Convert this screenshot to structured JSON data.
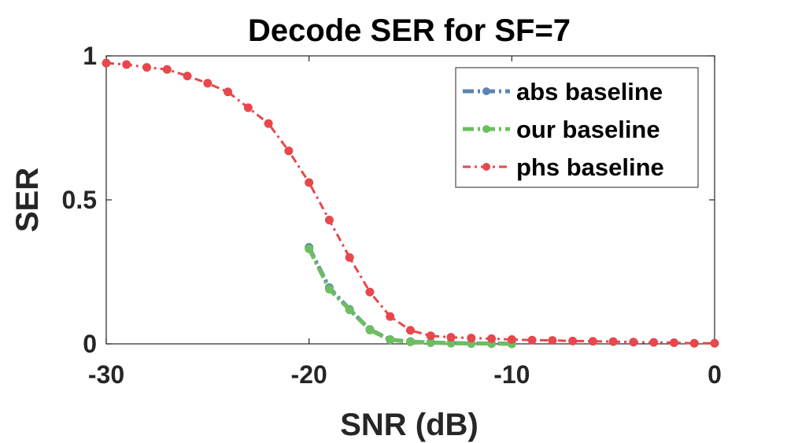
{
  "chart_data": {
    "type": "line",
    "title": "Decode SER for SF=7",
    "xlabel": "SNR (dB)",
    "ylabel": "SER",
    "xlim": [
      -30,
      0
    ],
    "ylim": [
      0,
      1
    ],
    "xticks": [
      -30,
      -20,
      -10,
      0
    ],
    "xtick_labels": [
      "-30",
      "-20",
      "-10",
      "0"
    ],
    "yticks": [
      0,
      0.5,
      1
    ],
    "ytick_labels": [
      "0",
      "0.5",
      "1"
    ],
    "grid": false,
    "legend_position": "top-right",
    "series": [
      {
        "name": "abs baseline",
        "color": "#5b84b1",
        "line_style": "dash-dot",
        "marker": "circle",
        "x": [
          -20,
          -19,
          -18,
          -17,
          -16,
          -15,
          -14,
          -13,
          -12,
          -11,
          -10
        ],
        "y": [
          0.335,
          0.195,
          0.12,
          0.05,
          0.015,
          0.008,
          0.005,
          0.003,
          0.002,
          0.001,
          0.001
        ]
      },
      {
        "name": "our baseline",
        "color": "#6cbf5f",
        "line_style": "dash-dot",
        "marker": "circle",
        "x": [
          -20,
          -19,
          -18,
          -17,
          -16,
          -15,
          -14,
          -13,
          -12,
          -11,
          -10
        ],
        "y": [
          0.33,
          0.19,
          0.118,
          0.048,
          0.014,
          0.007,
          0.004,
          0.002,
          0.001,
          0.001,
          0.0
        ]
      },
      {
        "name": "phs baseline",
        "color": "#e8474c",
        "line_style": "dash-dot",
        "marker": "circle",
        "x": [
          -30,
          -29,
          -28,
          -27,
          -26,
          -25,
          -24,
          -23,
          -22,
          -21,
          -20,
          -19,
          -18,
          -17,
          -16,
          -15,
          -14,
          -13,
          -12,
          -11,
          -10,
          -9,
          -8,
          -7,
          -6,
          -5,
          -4,
          -3,
          -2,
          -1,
          0
        ],
        "y": [
          0.975,
          0.97,
          0.96,
          0.953,
          0.93,
          0.905,
          0.875,
          0.82,
          0.765,
          0.67,
          0.56,
          0.43,
          0.3,
          0.18,
          0.095,
          0.047,
          0.028,
          0.023,
          0.02,
          0.018,
          0.015,
          0.013,
          0.012,
          0.01,
          0.009,
          0.008,
          0.006,
          0.005,
          0.004,
          0.002,
          0.002
        ]
      }
    ]
  }
}
